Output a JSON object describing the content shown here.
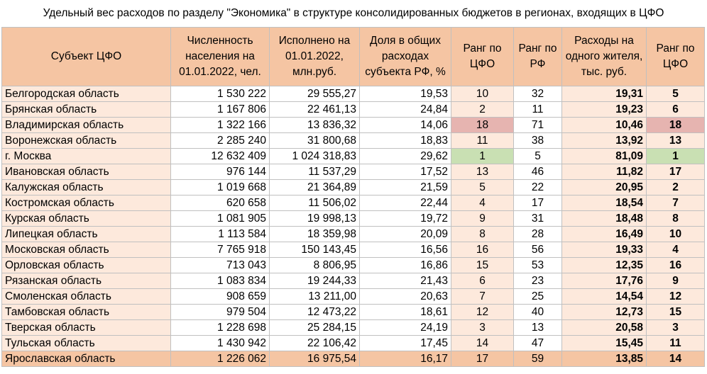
{
  "title": "Удельный вес расходов  по разделу \"Экономика\" в структуре консолидированных бюджетов в регионах, входящих в ЦФО",
  "headers": [
    "Субъект ЦФО",
    "Численность населения на 01.01.2022, чел.",
    "Исполнено на 01.01.2022, млн.руб.",
    "Доля в общих расходах субъекта РФ, %",
    "Ранг по ЦФО",
    "Ранг по РФ",
    "Расходы на одного жителя, тыс. руб.",
    "Ранг по ЦФО"
  ],
  "colors": {
    "header_fill": "#f5c5a3",
    "cell_fill": "#fde9dc",
    "best_rank_fill": "#c9e0b3",
    "worst_rank_fill": "#e6b4b0"
  },
  "rows": [
    {
      "name": "Белгородская область",
      "population": "1 530 222",
      "spent": "29 555,27",
      "share": "19,53",
      "rank_cfo": "10",
      "rank_rf": "32",
      "per_capita": "19,31",
      "rank_pc": "5"
    },
    {
      "name": "Брянская область",
      "population": "1 167 806",
      "spent": "22 461,13",
      "share": "24,84",
      "rank_cfo": "2",
      "rank_rf": "11",
      "per_capita": "19,23",
      "rank_pc": "6"
    },
    {
      "name": "Владимирская область",
      "population": "1 322 166",
      "spent": "13 836,32",
      "share": "14,06",
      "rank_cfo": "18",
      "rank_rf": "71",
      "per_capita": "10,46",
      "rank_pc": "18"
    },
    {
      "name": "Воронежская область",
      "population": "2 285 240",
      "spent": "31 800,68",
      "share": "18,83",
      "rank_cfo": "11",
      "rank_rf": "38",
      "per_capita": "13,92",
      "rank_pc": "13"
    },
    {
      "name": "г. Москва",
      "population": "12 632 409",
      "spent": "1 024 318,83",
      "share": "29,62",
      "rank_cfo": "1",
      "rank_rf": "5",
      "per_capita": "81,09",
      "rank_pc": "1"
    },
    {
      "name": "Ивановская область",
      "population": "976 144",
      "spent": "11 537,29",
      "share": "17,52",
      "rank_cfo": "13",
      "rank_rf": "46",
      "per_capita": "11,82",
      "rank_pc": "17"
    },
    {
      "name": "Калужская область",
      "population": "1 019 668",
      "spent": "21 364,89",
      "share": "21,59",
      "rank_cfo": "5",
      "rank_rf": "22",
      "per_capita": "20,95",
      "rank_pc": "2"
    },
    {
      "name": "Костромская область",
      "population": "620 658",
      "spent": "11 506,02",
      "share": "22,44",
      "rank_cfo": "4",
      "rank_rf": "17",
      "per_capita": "18,54",
      "rank_pc": "7"
    },
    {
      "name": "Курская область",
      "population": "1 081 905",
      "spent": "19 998,13",
      "share": "19,72",
      "rank_cfo": "9",
      "rank_rf": "31",
      "per_capita": "18,48",
      "rank_pc": "8"
    },
    {
      "name": "Липецкая область",
      "population": "1 113 584",
      "spent": "18 359,98",
      "share": "20,09",
      "rank_cfo": "8",
      "rank_rf": "28",
      "per_capita": "16,49",
      "rank_pc": "10"
    },
    {
      "name": "Московская область",
      "population": "7 765 918",
      "spent": "150 143,45",
      "share": "16,56",
      "rank_cfo": "16",
      "rank_rf": "56",
      "per_capita": "19,33",
      "rank_pc": "4"
    },
    {
      "name": "Орловская область",
      "population": "713 043",
      "spent": "8 806,95",
      "share": "16,86",
      "rank_cfo": "15",
      "rank_rf": "53",
      "per_capita": "12,35",
      "rank_pc": "16"
    },
    {
      "name": "Рязанская область",
      "population": "1 083 834",
      "spent": "19 244,33",
      "share": "21,43",
      "rank_cfo": "6",
      "rank_rf": "23",
      "per_capita": "17,76",
      "rank_pc": "9"
    },
    {
      "name": "Смоленская область",
      "population": "908 659",
      "spent": "13 211,00",
      "share": "20,63",
      "rank_cfo": "7",
      "rank_rf": "25",
      "per_capita": "14,54",
      "rank_pc": "12"
    },
    {
      "name": "Тамбовская область",
      "population": "979 504",
      "spent": "12 473,22",
      "share": "18,61",
      "rank_cfo": "12",
      "rank_rf": "40",
      "per_capita": "12,73",
      "rank_pc": "15"
    },
    {
      "name": "Тверская область",
      "population": "1 228 698",
      "spent": "25 284,15",
      "share": "24,19",
      "rank_cfo": "3",
      "rank_rf": "13",
      "per_capita": "20,58",
      "rank_pc": "3"
    },
    {
      "name": "Тульская область",
      "population": "1 430 942",
      "spent": "22 106,42",
      "share": "17,45",
      "rank_cfo": "14",
      "rank_rf": "47",
      "per_capita": "15,45",
      "rank_pc": "11"
    },
    {
      "name": "Ярославская область",
      "population": "1 226 062",
      "spent": "16 975,54",
      "share": "16,17",
      "rank_cfo": "17",
      "rank_rf": "59",
      "per_capita": "13,85",
      "rank_pc": "14"
    }
  ]
}
